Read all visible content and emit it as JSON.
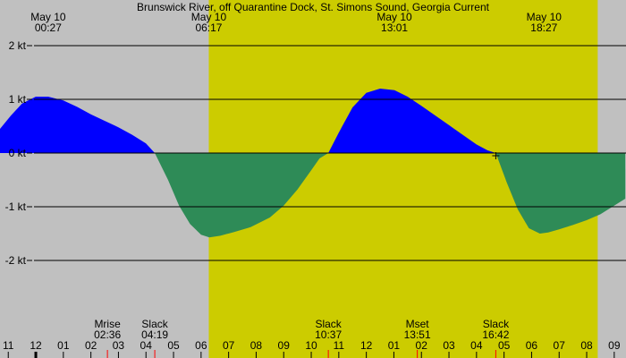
{
  "chart_data": {
    "type": "area",
    "title": "Brunswick River, off Quarantine Dock, St. Simons Sound, Georgia Current",
    "unit": "kt",
    "ylim": [
      -3.2,
      2.2
    ],
    "y_ticks": [
      {
        "value": 2,
        "label": "2 kt"
      },
      {
        "value": 1,
        "label": "1 kt"
      },
      {
        "value": 0,
        "label": "0 kt"
      },
      {
        "value": -1,
        "label": "-1 kt"
      },
      {
        "value": -2,
        "label": "-2 kt"
      }
    ],
    "x_unit": "hours from midnight, May 10",
    "xlim": [
      -1.3,
      21.4
    ],
    "hour_labels": [
      {
        "hour": -1,
        "label": "11"
      },
      {
        "hour": 0,
        "label": "12"
      },
      {
        "hour": 1,
        "label": "01"
      },
      {
        "hour": 2,
        "label": "02"
      },
      {
        "hour": 3,
        "label": "03"
      },
      {
        "hour": 4,
        "label": "04"
      },
      {
        "hour": 5,
        "label": "05"
      },
      {
        "hour": 6,
        "label": "06"
      },
      {
        "hour": 7,
        "label": "07"
      },
      {
        "hour": 8,
        "label": "08"
      },
      {
        "hour": 9,
        "label": "09"
      },
      {
        "hour": 10,
        "label": "10"
      },
      {
        "hour": 11,
        "label": "11"
      },
      {
        "hour": 12,
        "label": "12"
      },
      {
        "hour": 13,
        "label": "01"
      },
      {
        "hour": 14,
        "label": "02"
      },
      {
        "hour": 15,
        "label": "03"
      },
      {
        "hour": 16,
        "label": "04"
      },
      {
        "hour": 17,
        "label": "05"
      },
      {
        "hour": 18,
        "label": "06"
      },
      {
        "hour": 19,
        "label": "07"
      },
      {
        "hour": 20,
        "label": "08"
      },
      {
        "hour": 21,
        "label": "09"
      }
    ],
    "daylight": {
      "start": 6.28,
      "end": 20.4
    },
    "top_labels": [
      {
        "hour": 0.45,
        "date": "May 10",
        "time": "00:27"
      },
      {
        "hour": 6.28,
        "date": "May 10",
        "time": "06:17"
      },
      {
        "hour": 13.02,
        "date": "May 10",
        "time": "13:01"
      },
      {
        "hour": 18.45,
        "date": "May 10",
        "time": "18:27"
      }
    ],
    "events": [
      {
        "hour": 2.6,
        "label": "Mrise",
        "time": "02:36",
        "marker": "red"
      },
      {
        "hour": 4.32,
        "label": "Slack",
        "time": "04:19",
        "marker": "red"
      },
      {
        "hour": 10.62,
        "label": "Slack",
        "time": "10:37",
        "marker": "red"
      },
      {
        "hour": 13.85,
        "label": "Mset",
        "time": "13:51",
        "marker": "red"
      },
      {
        "hour": 16.7,
        "label": "Slack",
        "time": "16:42",
        "marker": "red"
      }
    ],
    "series": [
      {
        "flood_color": "#0000ff",
        "ebb_color": "#2e8b57",
        "x": [
          -1.3,
          -0.9,
          -0.5,
          0.0,
          0.45,
          1.0,
          1.5,
          2.0,
          2.5,
          3.0,
          3.5,
          4.0,
          4.32,
          4.8,
          5.2,
          5.6,
          6.0,
          6.3,
          6.7,
          7.2,
          7.8,
          8.5,
          9.0,
          9.5,
          10.0,
          10.3,
          10.62,
          11.0,
          11.5,
          12.0,
          12.5,
          13.02,
          13.5,
          14.0,
          14.5,
          15.0,
          15.5,
          16.0,
          16.4,
          16.7,
          17.1,
          17.5,
          17.9,
          18.3,
          18.6,
          19.0,
          19.5,
          20.0,
          20.5,
          21.0,
          21.4
        ],
        "y": [
          0.45,
          0.7,
          0.92,
          1.05,
          1.05,
          0.98,
          0.86,
          0.72,
          0.6,
          0.48,
          0.34,
          0.18,
          0.0,
          -0.5,
          -0.98,
          -1.32,
          -1.52,
          -1.57,
          -1.54,
          -1.47,
          -1.38,
          -1.2,
          -0.98,
          -0.68,
          -0.32,
          -0.1,
          0.0,
          0.38,
          0.85,
          1.12,
          1.2,
          1.17,
          1.05,
          0.88,
          0.7,
          0.52,
          0.34,
          0.16,
          0.05,
          0.0,
          -0.55,
          -1.05,
          -1.4,
          -1.5,
          -1.48,
          -1.42,
          -1.34,
          -1.25,
          -1.14,
          -0.98,
          -0.85
        ]
      }
    ],
    "slack_marker": {
      "hour": 16.7,
      "value": 0
    },
    "colors": {
      "night": "#c0c0c0",
      "day": "#cccc00",
      "grid": "#000000",
      "flood": "#0000ff",
      "ebb": "#2e8b57",
      "event_marker": "#ff0000"
    }
  }
}
